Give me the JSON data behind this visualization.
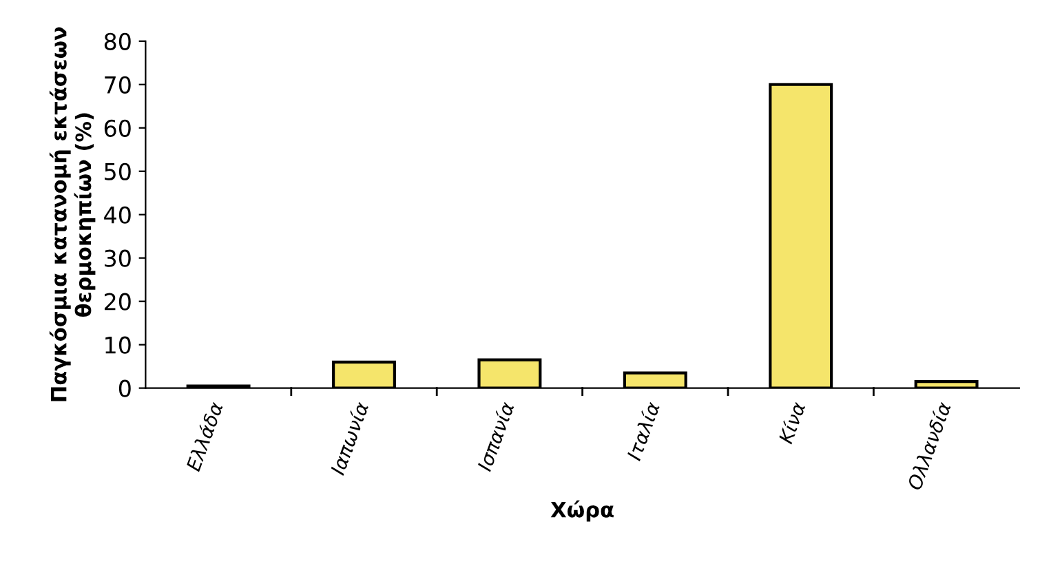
{
  "chart_data": {
    "type": "bar",
    "xlabel": "Χώρα",
    "ylabel": "Παγκόσμια κατανομή εκτάσεων\nθερμοκηπίων (%)",
    "categories": [
      "Ελλάδα",
      "Ιαπωνία",
      "Ισπανία",
      "Ιταλία",
      "Κίνα",
      "Ολλανδία"
    ],
    "values": [
      0.5,
      6,
      6.5,
      3.5,
      70,
      1.5
    ],
    "color": "#f5e56b",
    "ylim": [
      0,
      80
    ],
    "yticks": [
      0,
      10,
      20,
      30,
      40,
      50,
      60,
      70,
      80
    ],
    "grid": false,
    "legend": false
  }
}
